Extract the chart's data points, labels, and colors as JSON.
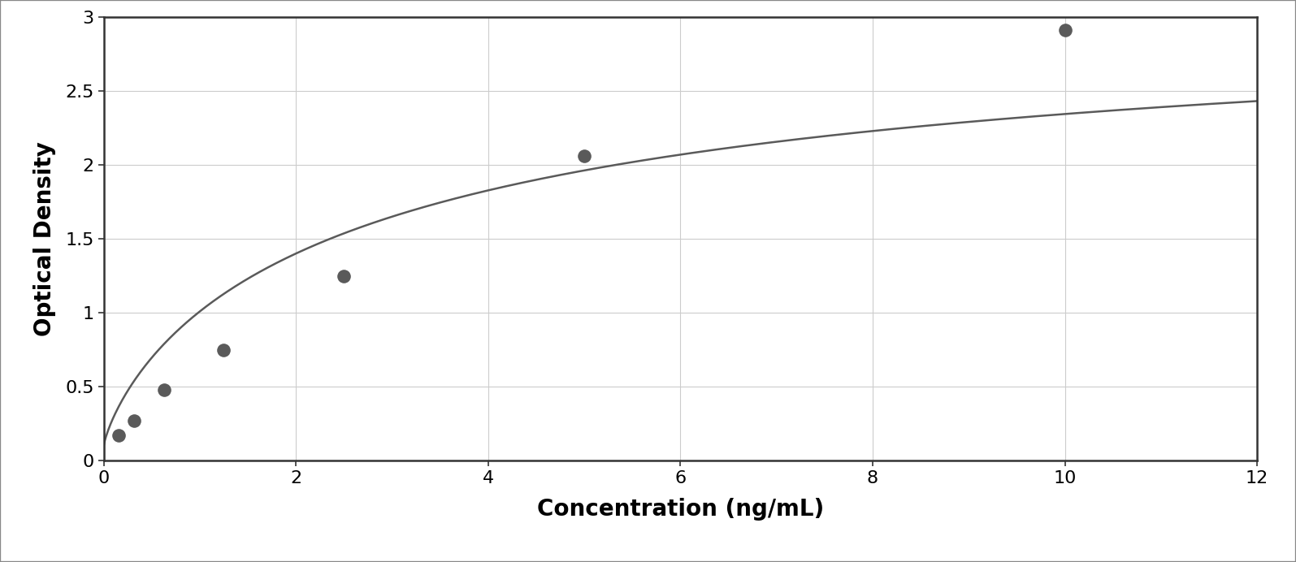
{
  "x_data": [
    0.156,
    0.313,
    0.625,
    1.25,
    2.5,
    5.0,
    10.0
  ],
  "y_data": [
    0.175,
    0.27,
    0.48,
    0.75,
    1.25,
    2.06,
    2.91
  ],
  "xlabel": "Concentration (ng/mL)",
  "ylabel": "Optical Density",
  "xlim": [
    0,
    12
  ],
  "ylim": [
    0,
    3
  ],
  "xticks": [
    0,
    2,
    4,
    6,
    8,
    10,
    12
  ],
  "yticks": [
    0,
    0.5,
    1.0,
    1.5,
    2.0,
    2.5,
    3.0
  ],
  "data_color": "#5a5a5a",
  "line_color": "#5a5a5a",
  "background_color": "#ffffff",
  "plot_bg_color": "#ffffff",
  "grid_color": "#cccccc",
  "border_color": "#333333",
  "marker_size": 10,
  "line_width": 1.8,
  "xlabel_fontsize": 20,
  "ylabel_fontsize": 20,
  "tick_fontsize": 16,
  "xlabel_fontweight": "bold",
  "ylabel_fontweight": "bold"
}
